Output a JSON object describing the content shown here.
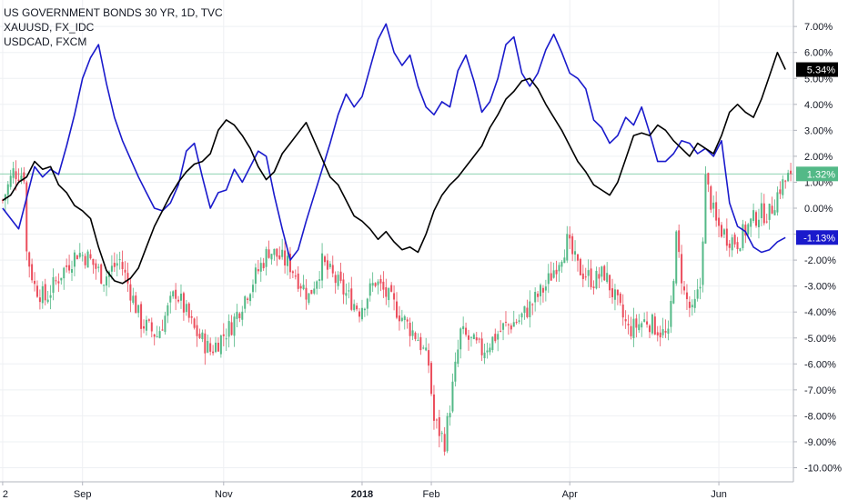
{
  "legend": [
    "US GOVERNMENT BONDS 30 YR, 1D, TVC",
    "XAUUSD, FX_IDC",
    "USDCAD, FXCM"
  ],
  "colors": {
    "bonds_up": "#53b987",
    "bonds_down": "#eb4d5c",
    "xauusd": "#1a1acc",
    "usdcad": "#000000",
    "grid": "#eef0f3",
    "zero_line": "#5fc08f"
  },
  "chart_data": {
    "type": "line",
    "title": "US GOVERNMENT BONDS 30 YR, 1D, TVC",
    "ylim": [
      -10.5,
      7.5
    ],
    "y_ticks": [
      "7.00%",
      "6.00%",
      "5.00%",
      "4.00%",
      "3.00%",
      "2.00%",
      "1.00%",
      "0.00%",
      "-1.00%",
      "-2.00%",
      "-3.00%",
      "-4.00%",
      "-5.00%",
      "-6.00%",
      "-7.00%",
      "-8.00%",
      "-9.00%",
      "-10.00%"
    ],
    "y_tick_values": [
      7,
      6,
      5,
      4,
      3,
      2,
      1,
      0,
      -1,
      -2,
      -3,
      -4,
      -5,
      -6,
      -7,
      -8,
      -9,
      -10
    ],
    "x_ticks": [
      {
        "label": "2",
        "x": 0,
        "bold": false
      },
      {
        "label": "Sep",
        "x": 30,
        "bold": false
      },
      {
        "label": "Nov",
        "x": 83,
        "bold": false
      },
      {
        "label": "2018",
        "x": 135,
        "bold": true
      },
      {
        "label": "Feb",
        "x": 161,
        "bold": false
      },
      {
        "label": "Apr",
        "x": 213,
        "bold": false
      },
      {
        "label": "Jun",
        "x": 269,
        "bold": false
      }
    ],
    "x_range": [
      -1,
      297
    ],
    "series": [
      {
        "name": "XAUUSD, FX_IDC",
        "last_label": "-1.13%",
        "last_value": -1.13,
        "x": [
          0,
          3,
          6,
          9,
          12,
          15,
          18,
          21,
          24,
          27,
          30,
          33,
          36,
          39,
          42,
          45,
          48,
          51,
          54,
          57,
          60,
          63,
          66,
          69,
          72,
          75,
          78,
          81,
          84,
          87,
          90,
          93,
          96,
          99,
          102,
          105,
          108,
          111,
          114,
          117,
          120,
          123,
          126,
          129,
          132,
          135,
          138,
          141,
          144,
          147,
          150,
          153,
          156,
          159,
          162,
          165,
          168,
          171,
          174,
          177,
          180,
          183,
          186,
          189,
          192,
          195,
          198,
          201,
          204,
          207,
          210,
          213,
          216,
          219,
          222,
          225,
          228,
          231,
          234,
          237,
          240,
          243,
          246,
          249,
          252,
          255,
          258,
          261,
          264,
          267,
          270,
          273,
          276,
          279,
          282,
          285,
          288,
          291,
          294
        ],
        "values": [
          0.0,
          -0.4,
          -0.8,
          0.4,
          1.6,
          1.2,
          1.5,
          1.3,
          2.4,
          3.6,
          5.0,
          5.8,
          6.3,
          4.8,
          3.5,
          2.6,
          1.9,
          1.2,
          0.6,
          0.0,
          -0.1,
          0.2,
          0.9,
          2.2,
          2.5,
          1.2,
          0.0,
          0.6,
          0.7,
          1.5,
          1.0,
          1.6,
          2.2,
          2.0,
          0.5,
          -0.8,
          -2.0,
          -1.6,
          -0.5,
          0.5,
          1.5,
          2.5,
          3.6,
          4.4,
          3.9,
          4.3,
          5.4,
          6.5,
          7.1,
          6.0,
          5.5,
          5.9,
          4.7,
          3.9,
          3.6,
          4.1,
          3.9,
          5.3,
          5.9,
          4.9,
          3.7,
          4.1,
          5.0,
          6.3,
          6.6,
          5.2,
          4.7,
          5.2,
          6.1,
          6.7,
          6.0,
          5.2,
          5.0,
          4.6,
          3.4,
          3.1,
          2.5,
          2.8,
          3.5,
          3.2,
          3.9,
          2.9,
          1.8,
          1.8,
          2.1,
          2.6,
          2.5,
          2.1,
          2.3,
          2.0,
          2.6,
          0.2,
          -0.7,
          -0.9,
          -1.5,
          -1.7,
          -1.6,
          -1.3,
          -1.13
        ]
      },
      {
        "name": "USDCAD, FXCM",
        "last_label": "5.34%",
        "last_value": 5.34,
        "x": [
          0,
          3,
          6,
          9,
          12,
          15,
          18,
          21,
          24,
          27,
          30,
          33,
          36,
          39,
          42,
          45,
          48,
          51,
          54,
          57,
          60,
          63,
          66,
          69,
          72,
          75,
          78,
          81,
          84,
          87,
          90,
          93,
          96,
          99,
          102,
          105,
          108,
          111,
          114,
          117,
          120,
          123,
          126,
          129,
          132,
          135,
          138,
          141,
          144,
          147,
          150,
          153,
          156,
          159,
          162,
          165,
          168,
          171,
          174,
          177,
          180,
          183,
          186,
          189,
          192,
          195,
          198,
          201,
          204,
          207,
          210,
          213,
          216,
          219,
          222,
          225,
          228,
          231,
          234,
          237,
          240,
          243,
          246,
          249,
          252,
          255,
          258,
          261,
          264,
          267,
          270,
          273,
          276,
          279,
          282,
          285,
          288,
          291,
          294
        ],
        "values": [
          0.3,
          0.5,
          1.0,
          1.2,
          1.8,
          1.5,
          1.6,
          0.9,
          0.6,
          0.1,
          -0.1,
          -0.4,
          -1.5,
          -2.4,
          -2.8,
          -2.9,
          -2.7,
          -2.3,
          -1.5,
          -0.7,
          -0.1,
          0.5,
          1.0,
          1.4,
          1.7,
          1.8,
          2.1,
          3.0,
          3.4,
          3.2,
          2.8,
          2.3,
          1.6,
          1.1,
          1.4,
          2.1,
          2.5,
          2.9,
          3.3,
          2.6,
          1.9,
          1.2,
          0.9,
          0.3,
          -0.3,
          -0.5,
          -0.8,
          -1.2,
          -0.9,
          -1.3,
          -1.6,
          -1.5,
          -1.7,
          -1.0,
          -0.1,
          0.5,
          0.9,
          1.2,
          1.6,
          2.0,
          2.4,
          3.1,
          3.6,
          4.2,
          4.5,
          4.9,
          5.0,
          4.6,
          4.0,
          3.5,
          3.0,
          2.4,
          1.8,
          1.4,
          0.9,
          0.7,
          0.5,
          1.0,
          1.9,
          2.8,
          2.9,
          2.8,
          3.2,
          3.0,
          2.6,
          2.3,
          2.0,
          2.5,
          2.3,
          2.1,
          2.8,
          3.7,
          4.0,
          3.7,
          3.5,
          4.2,
          5.1,
          6.0,
          5.34
        ]
      }
    ],
    "candles": {
      "name": "US GOVERNMENT BONDS 30 YR, 1D, TVC",
      "last_label": "1.32%",
      "last_value": 1.32,
      "keypoints_x": [
        0,
        4,
        8,
        9,
        12,
        16,
        22,
        28,
        32,
        38,
        44,
        52,
        58,
        65,
        72,
        78,
        86,
        92,
        100,
        108,
        115,
        120,
        128,
        134,
        140,
        146,
        152,
        156,
        160,
        162,
        166,
        172,
        180,
        188,
        194,
        204,
        212,
        216,
        222,
        226,
        230,
        235,
        242,
        250,
        253,
        256,
        259,
        262,
        264,
        268,
        272,
        276,
        280,
        284,
        288,
        292,
        296
      ],
      "keypoints_y": [
        0.3,
        1.4,
        1.3,
        -1.7,
        -3.0,
        -3.5,
        -2.5,
        -1.7,
        -1.9,
        -2.7,
        -2.0,
        -4.4,
        -4.9,
        -3.2,
        -4.7,
        -5.5,
        -4.5,
        -3.2,
        -1.6,
        -2.2,
        -3.4,
        -2.1,
        -3.2,
        -3.9,
        -2.8,
        -3.6,
        -4.5,
        -5.0,
        -6.0,
        -8.2,
        -9.0,
        -4.8,
        -5.5,
        -4.6,
        -4.3,
        -3.0,
        -1.3,
        -2.3,
        -2.8,
        -2.5,
        -3.5,
        -4.7,
        -4.3,
        -5.0,
        -1.2,
        -3.3,
        -4.1,
        -3.0,
        1.1,
        -0.6,
        -1.1,
        -1.3,
        -0.7,
        -0.2,
        -0.2,
        0.8,
        1.32
      ]
    }
  }
}
